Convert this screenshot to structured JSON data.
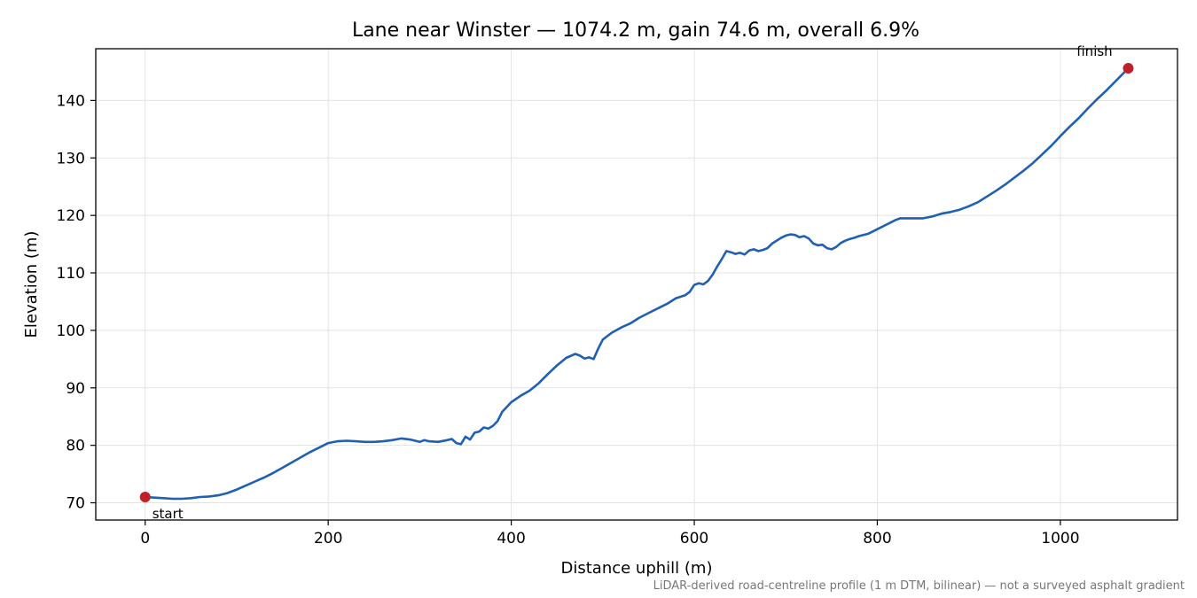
{
  "chart_data": {
    "type": "line",
    "title": "Lane near Winster — 1074.2 m, gain 74.6 m, overall 6.9%",
    "xlabel": "Distance uphill (m)",
    "ylabel": "Elevation (m)",
    "xlim": [
      -54,
      1128
    ],
    "ylim": [
      67,
      149
    ],
    "xticks": [
      0,
      200,
      400,
      600,
      800,
      1000
    ],
    "yticks": [
      70,
      80,
      90,
      100,
      110,
      120,
      130,
      140
    ],
    "grid": true,
    "line_color": "#1f5fb4",
    "marker_color": "#c0202a",
    "series": [
      {
        "x": [
          0,
          10,
          20,
          30,
          40,
          50,
          60,
          70,
          80,
          90,
          100,
          110,
          120,
          130,
          140,
          150,
          160,
          170,
          180,
          190,
          200,
          210,
          220,
          230,
          240,
          250,
          260,
          270,
          280,
          290,
          300,
          305,
          310,
          320,
          330,
          335,
          340,
          345,
          350,
          355,
          360,
          365,
          370,
          375,
          380,
          385,
          390,
          400,
          410,
          420,
          430,
          440,
          450,
          460,
          470,
          475,
          480,
          485,
          490,
          495,
          500,
          510,
          520,
          530,
          540,
          550,
          560,
          570,
          580,
          590,
          595,
          600,
          605,
          610,
          615,
          620,
          625,
          630,
          635,
          640,
          645,
          650,
          655,
          660,
          665,
          670,
          675,
          680,
          685,
          690,
          695,
          700,
          705,
          710,
          715,
          720,
          725,
          730,
          735,
          740,
          745,
          750,
          755,
          760,
          765,
          770,
          775,
          780,
          790,
          800,
          810,
          820,
          825,
          830,
          840,
          850,
          860,
          870,
          880,
          890,
          900,
          910,
          920,
          930,
          940,
          950,
          960,
          970,
          980,
          990,
          1000,
          1010,
          1020,
          1030,
          1040,
          1050,
          1060,
          1074.2
        ],
        "y": [
          71.0,
          70.9,
          70.8,
          70.7,
          70.7,
          70.8,
          71.0,
          71.1,
          71.3,
          71.7,
          72.3,
          73.0,
          73.7,
          74.4,
          75.2,
          76.1,
          77.0,
          77.9,
          78.8,
          79.6,
          80.4,
          80.7,
          80.8,
          80.7,
          80.6,
          80.6,
          80.7,
          80.9,
          81.2,
          81.0,
          80.6,
          80.9,
          80.7,
          80.6,
          80.9,
          81.1,
          80.4,
          80.2,
          81.5,
          81.0,
          82.2,
          82.4,
          83.1,
          82.9,
          83.4,
          84.2,
          85.8,
          87.5,
          88.6,
          89.5,
          90.8,
          92.4,
          93.9,
          95.2,
          95.9,
          95.6,
          95.1,
          95.3,
          95.0,
          96.8,
          98.4,
          99.6,
          100.5,
          101.2,
          102.2,
          103.0,
          103.8,
          104.6,
          105.6,
          106.1,
          106.7,
          107.9,
          108.2,
          108.0,
          108.6,
          109.7,
          111.1,
          112.4,
          113.8,
          113.6,
          113.3,
          113.5,
          113.2,
          113.9,
          114.1,
          113.8,
          114.0,
          114.3,
          115.1,
          115.6,
          116.1,
          116.5,
          116.7,
          116.6,
          116.2,
          116.4,
          116.0,
          115.1,
          114.8,
          114.9,
          114.3,
          114.1,
          114.5,
          115.2,
          115.6,
          115.9,
          116.1,
          116.4,
          116.8,
          117.6,
          118.4,
          119.2,
          119.5,
          119.5,
          119.5,
          119.5,
          119.8,
          120.3,
          120.6,
          121.0,
          121.6,
          122.3,
          123.3,
          124.3,
          125.4,
          126.6,
          127.8,
          129.1,
          130.6,
          132.1,
          133.8,
          135.4,
          136.9,
          138.6,
          140.2,
          141.7,
          143.3,
          145.6
        ]
      }
    ],
    "annotations": {
      "start": {
        "label": "start",
        "x": 0,
        "y": 71.0
      },
      "finish": {
        "label": "finish",
        "x": 1074.2,
        "y": 145.6
      }
    },
    "footnote": "LiDAR-derived road-centreline profile (1 m DTM, bilinear) — not a surveyed asphalt gradient"
  }
}
